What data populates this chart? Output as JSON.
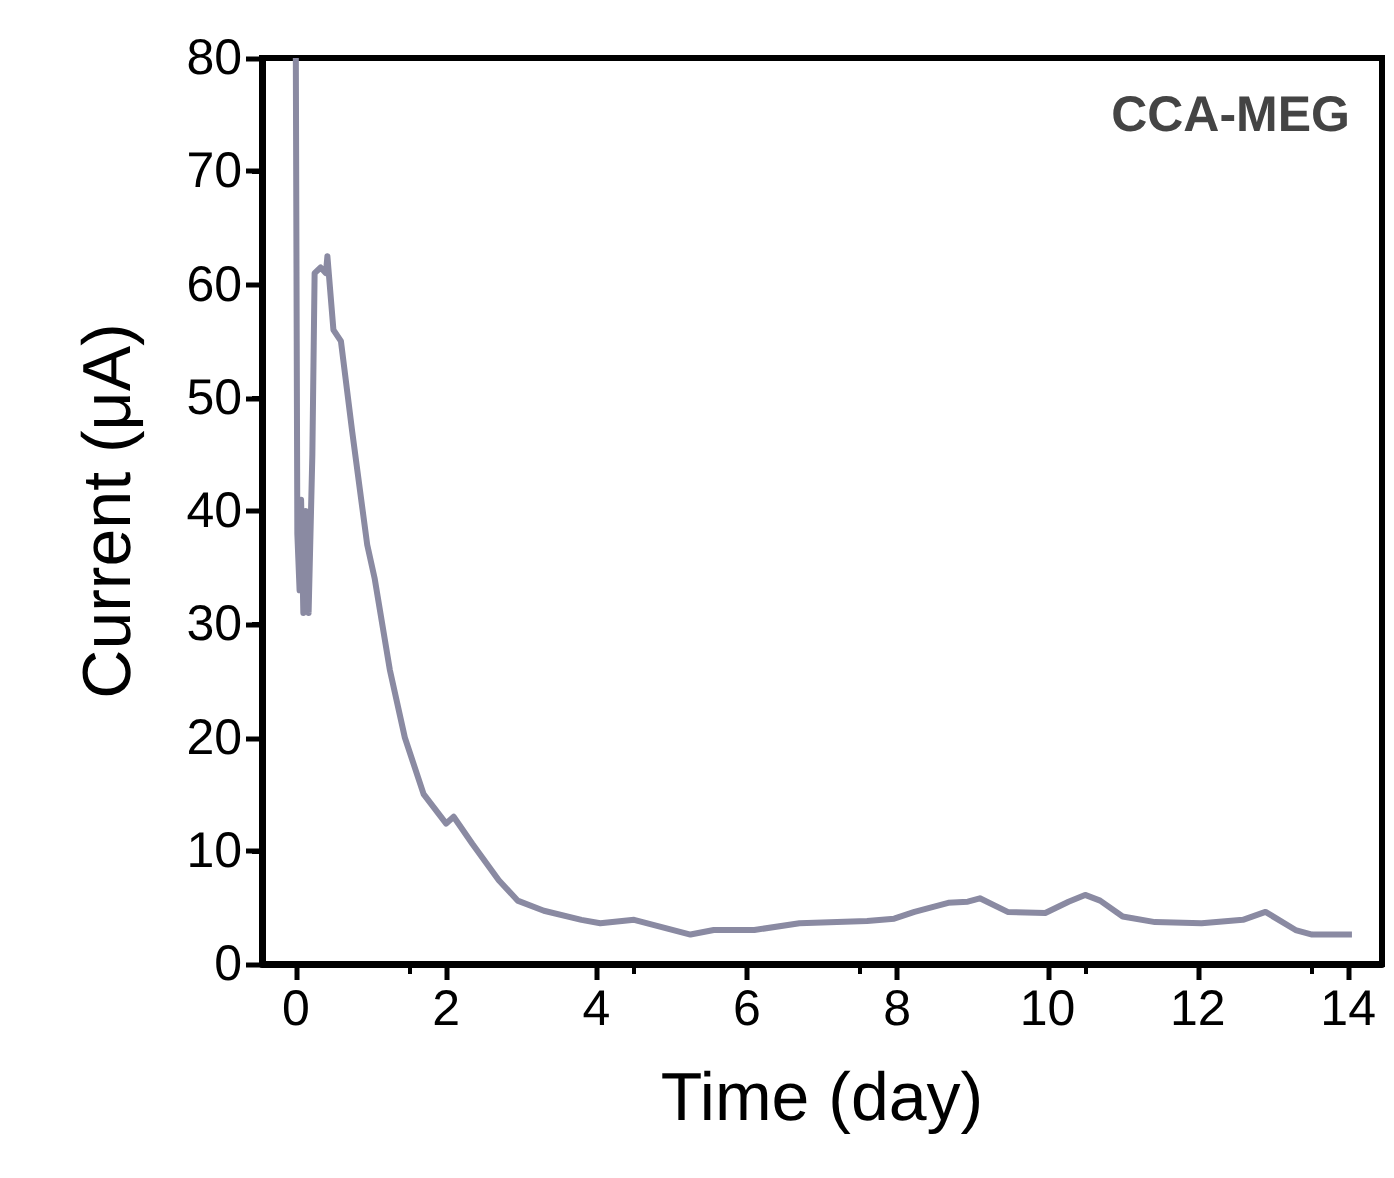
{
  "chart_data": {
    "type": "line",
    "xlabel": "Time (day)",
    "ylabel": "Current (μA)",
    "annotations": [
      "CCA-MEG"
    ],
    "xlim": [
      -0.45,
      14.45
    ],
    "xticks": [
      0,
      2,
      4,
      6,
      8,
      10,
      12,
      14
    ],
    "ylim": [
      0,
      80
    ],
    "yticks": [
      0,
      10,
      20,
      30,
      40,
      50,
      60,
      70,
      80
    ],
    "grid": false,
    "marker": "none",
    "line_style": "solid",
    "series": [
      {
        "color": "#8a8aa2",
        "x": [
          0,
          0.02,
          0.05,
          0.07,
          0.1,
          0.13,
          0.17,
          0.22,
          0.25,
          0.33,
          0.4,
          0.42,
          0.5,
          0.6,
          0.75,
          0.95,
          1.05,
          1.25,
          1.45,
          1.7,
          2.0,
          2.1,
          2.35,
          2.7,
          2.95,
          3.3,
          3.8,
          4.05,
          4.5,
          5.25,
          5.56,
          6.1,
          6.7,
          7.6,
          7.96,
          8.23,
          8.68,
          8.94,
          9.1,
          9.47,
          9.97,
          10.28,
          10.5,
          10.7,
          11.0,
          11.43,
          12.05,
          12.6,
          12.9,
          13.3,
          13.52,
          14.05
        ],
        "values": [
          80,
          38,
          33,
          41,
          31,
          40,
          31,
          45,
          61,
          61.5,
          61,
          62.5,
          56,
          55,
          47,
          37,
          34,
          26,
          20,
          15,
          12.4,
          13,
          10.6,
          7.4,
          5.6,
          4.7,
          3.9,
          3.6,
          3.9,
          2.6,
          3.0,
          3.0,
          3.6,
          3.8,
          4.0,
          4.6,
          5.4,
          5.5,
          5.8,
          4.6,
          4.5,
          5.5,
          6.1,
          5.6,
          4.2,
          3.7,
          3.6,
          3.9,
          4.6,
          3.0,
          2.6,
          2.6
        ]
      }
    ]
  }
}
